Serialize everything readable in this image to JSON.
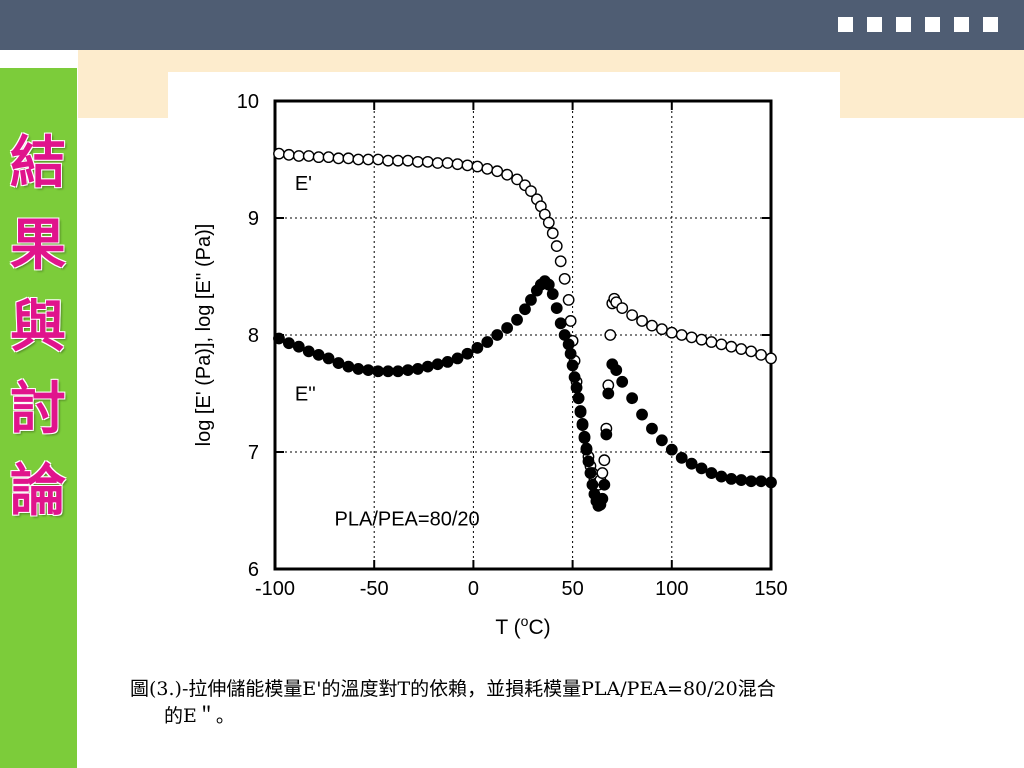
{
  "slide": {
    "section_title": "結果與討論",
    "title_chars": [
      "結",
      "果",
      "與",
      "討",
      "論"
    ],
    "nav_squares": 6,
    "colors": {
      "topbar": "#4f5d73",
      "cream": "#fdeccd",
      "sidebar": "#7ccc3a",
      "title": "#e0148c"
    }
  },
  "caption": {
    "line1": "圖(3.)-拉伸儲能模量E'的溫度對T的依賴，並損耗模量PLA/PEA=80/20混合",
    "line2": "的E＂。"
  },
  "chart_data": {
    "type": "scatter",
    "xlabel": "T (°C)",
    "ylabel": "log [E' (Pa)], log [E'' (Pa)]",
    "xlim": [
      -100,
      150
    ],
    "ylim": [
      6,
      10
    ],
    "x_ticks": [
      -100,
      -50,
      0,
      50,
      100,
      150
    ],
    "y_ticks": [
      6,
      7,
      8,
      9,
      10
    ],
    "grid": "dotted",
    "annotation": "PLA/PEA=80/20",
    "series": [
      {
        "name": "E'",
        "marker": "open-circle",
        "points": [
          [
            -98,
            9.55
          ],
          [
            -93,
            9.54
          ],
          [
            -88,
            9.53
          ],
          [
            -83,
            9.53
          ],
          [
            -78,
            9.52
          ],
          [
            -73,
            9.52
          ],
          [
            -68,
            9.51
          ],
          [
            -63,
            9.51
          ],
          [
            -58,
            9.5
          ],
          [
            -53,
            9.5
          ],
          [
            -48,
            9.5
          ],
          [
            -43,
            9.49
          ],
          [
            -38,
            9.49
          ],
          [
            -33,
            9.49
          ],
          [
            -28,
            9.48
          ],
          [
            -23,
            9.48
          ],
          [
            -18,
            9.47
          ],
          [
            -13,
            9.47
          ],
          [
            -8,
            9.46
          ],
          [
            -3,
            9.45
          ],
          [
            2,
            9.44
          ],
          [
            7,
            9.42
          ],
          [
            12,
            9.4
          ],
          [
            17,
            9.37
          ],
          [
            22,
            9.33
          ],
          [
            26,
            9.28
          ],
          [
            29,
            9.23
          ],
          [
            32,
            9.16
          ],
          [
            34,
            9.1
          ],
          [
            36,
            9.03
          ],
          [
            38,
            8.96
          ],
          [
            40,
            8.87
          ],
          [
            42,
            8.76
          ],
          [
            44,
            8.63
          ],
          [
            46,
            8.48
          ],
          [
            48,
            8.3
          ],
          [
            49,
            8.12
          ],
          [
            50,
            7.95
          ],
          [
            51,
            7.78
          ],
          [
            52,
            7.6
          ],
          [
            53,
            7.46
          ],
          [
            54,
            7.34
          ],
          [
            55,
            7.23
          ],
          [
            56,
            7.12
          ],
          [
            57,
            7.03
          ],
          [
            58,
            6.96
          ],
          [
            59,
            6.88
          ],
          [
            60,
            6.82
          ],
          [
            61,
            6.77
          ],
          [
            62,
            6.73
          ],
          [
            63,
            6.72
          ],
          [
            64,
            6.76
          ],
          [
            65,
            6.82
          ],
          [
            66,
            6.93
          ],
          [
            67,
            7.2
          ],
          [
            68,
            7.57
          ],
          [
            69,
            8.0
          ],
          [
            70,
            8.27
          ],
          [
            71,
            8.31
          ],
          [
            72,
            8.28
          ],
          [
            75,
            8.23
          ],
          [
            80,
            8.17
          ],
          [
            85,
            8.12
          ],
          [
            90,
            8.08
          ],
          [
            95,
            8.05
          ],
          [
            100,
            8.02
          ],
          [
            105,
            8.0
          ],
          [
            110,
            7.98
          ],
          [
            115,
            7.96
          ],
          [
            120,
            7.94
          ],
          [
            125,
            7.92
          ],
          [
            130,
            7.9
          ],
          [
            135,
            7.88
          ],
          [
            140,
            7.86
          ],
          [
            145,
            7.83
          ],
          [
            150,
            7.8
          ]
        ]
      },
      {
        "name": "E''",
        "marker": "filled-circle",
        "points": [
          [
            -98,
            7.97
          ],
          [
            -93,
            7.93
          ],
          [
            -88,
            7.9
          ],
          [
            -83,
            7.86
          ],
          [
            -78,
            7.83
          ],
          [
            -73,
            7.8
          ],
          [
            -68,
            7.76
          ],
          [
            -63,
            7.73
          ],
          [
            -58,
            7.71
          ],
          [
            -53,
            7.7
          ],
          [
            -48,
            7.69
          ],
          [
            -43,
            7.69
          ],
          [
            -38,
            7.69
          ],
          [
            -33,
            7.7
          ],
          [
            -28,
            7.71
          ],
          [
            -23,
            7.73
          ],
          [
            -18,
            7.75
          ],
          [
            -13,
            7.77
          ],
          [
            -8,
            7.8
          ],
          [
            -3,
            7.84
          ],
          [
            2,
            7.89
          ],
          [
            7,
            7.94
          ],
          [
            12,
            8.0
          ],
          [
            17,
            8.06
          ],
          [
            22,
            8.13
          ],
          [
            26,
            8.22
          ],
          [
            29,
            8.3
          ],
          [
            32,
            8.38
          ],
          [
            34,
            8.43
          ],
          [
            36,
            8.46
          ],
          [
            38,
            8.43
          ],
          [
            40,
            8.35
          ],
          [
            42,
            8.23
          ],
          [
            44,
            8.1
          ],
          [
            46,
            8.0
          ],
          [
            48,
            7.92
          ],
          [
            49,
            7.84
          ],
          [
            50,
            7.74
          ],
          [
            51,
            7.64
          ],
          [
            52,
            7.55
          ],
          [
            53,
            7.46
          ],
          [
            54,
            7.35
          ],
          [
            55,
            7.24
          ],
          [
            56,
            7.13
          ],
          [
            57,
            7.02
          ],
          [
            58,
            6.92
          ],
          [
            59,
            6.82
          ],
          [
            60,
            6.72
          ],
          [
            61,
            6.64
          ],
          [
            62,
            6.58
          ],
          [
            63,
            6.54
          ],
          [
            64,
            6.55
          ],
          [
            65,
            6.6
          ],
          [
            66,
            6.72
          ],
          [
            67,
            7.15
          ],
          [
            68,
            7.5
          ],
          [
            70,
            7.75
          ],
          [
            72,
            7.7
          ],
          [
            75,
            7.6
          ],
          [
            80,
            7.46
          ],
          [
            85,
            7.32
          ],
          [
            90,
            7.2
          ],
          [
            95,
            7.1
          ],
          [
            100,
            7.02
          ],
          [
            105,
            6.95
          ],
          [
            110,
            6.9
          ],
          [
            115,
            6.86
          ],
          [
            120,
            6.82
          ],
          [
            125,
            6.79
          ],
          [
            130,
            6.77
          ],
          [
            135,
            6.76
          ],
          [
            140,
            6.75
          ],
          [
            145,
            6.75
          ],
          [
            150,
            6.74
          ]
        ]
      }
    ]
  }
}
